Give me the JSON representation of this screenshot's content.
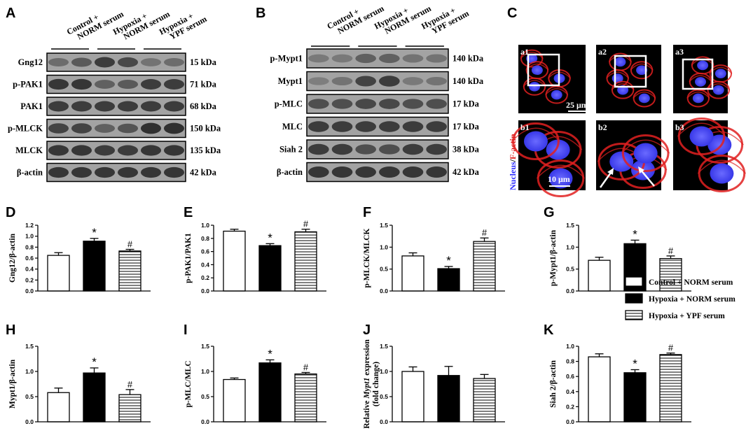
{
  "colors": {
    "blot_bg": "#a3a3a3",
    "band": "#2a2a2a",
    "nucleus": "#3838e8",
    "actin": "#e02020",
    "cell_bg": "#000000"
  },
  "western_a": {
    "letter": "A",
    "group_labels": [
      [
        "Control +",
        "NORM serum"
      ],
      [
        "Hypoxia +",
        "NORM serum"
      ],
      [
        "Hypoxia +",
        "YPF serum"
      ]
    ],
    "rows": [
      {
        "label": "Gng12",
        "kda": "15 kDa",
        "intensity": [
          0.45,
          0.6,
          0.85,
          0.75,
          0.4,
          0.45
        ]
      },
      {
        "label": "p-PAK1",
        "kda": "71 kDa",
        "intensity": [
          0.9,
          0.9,
          0.55,
          0.6,
          0.85,
          0.85
        ]
      },
      {
        "label": "PAK1",
        "kda": "68 kDa",
        "intensity": [
          0.85,
          0.85,
          0.85,
          0.85,
          0.85,
          0.85
        ]
      },
      {
        "label": "p-MLCK",
        "kda": "150 kDa",
        "intensity": [
          0.8,
          0.8,
          0.55,
          0.65,
          0.95,
          0.95
        ]
      },
      {
        "label": "MLCK",
        "kda": "135 kDa",
        "intensity": [
          0.9,
          0.9,
          0.85,
          0.85,
          0.9,
          0.9
        ]
      },
      {
        "label": "β-actin",
        "kda": "42 kDa",
        "intensity": [
          0.9,
          0.9,
          0.9,
          0.9,
          0.9,
          0.9
        ]
      }
    ]
  },
  "western_b": {
    "letter": "B",
    "group_labels": [
      [
        "Control +",
        "NORM serum"
      ],
      [
        "Hypoxia +",
        "NORM serum"
      ],
      [
        "Hypoxia +",
        "YPF serum"
      ]
    ],
    "rows": [
      {
        "label": "p-Mypt1",
        "kda": "140 kDa",
        "intensity": [
          0.35,
          0.35,
          0.55,
          0.55,
          0.4,
          0.4
        ]
      },
      {
        "label": "Mypt1",
        "kda": "140 kDa",
        "intensity": [
          0.3,
          0.4,
          0.8,
          0.85,
          0.35,
          0.4
        ]
      },
      {
        "label": "p-MLC",
        "kda": "17 kDa",
        "intensity": [
          0.7,
          0.7,
          0.75,
          0.75,
          0.7,
          0.7
        ]
      },
      {
        "label": "MLC",
        "kda": "17 kDa",
        "intensity": [
          0.85,
          0.85,
          0.85,
          0.85,
          0.85,
          0.85
        ]
      },
      {
        "label": "Siah 2",
        "kda": "38 kDa",
        "intensity": [
          0.85,
          0.85,
          0.7,
          0.7,
          0.85,
          0.85
        ]
      },
      {
        "label": "β-actin",
        "kda": "42 kDa",
        "intensity": [
          0.9,
          0.9,
          0.9,
          0.9,
          0.9,
          0.9
        ]
      }
    ]
  },
  "microscopy": {
    "letter": "C",
    "top_labels": [
      "a1",
      "a2",
      "a3"
    ],
    "bottom_labels": [
      "b1",
      "b2",
      "b3"
    ],
    "scale_top": "25 μm",
    "scale_bottom": "10 μm",
    "side_label_nucleus": "Nucleus",
    "side_label_sep": "/",
    "side_label_actin": "F-actin"
  },
  "legend": {
    "items": [
      "Control + NORM serum",
      "Hypoxia + NORM serum",
      "Hypoxia + YPF serum"
    ]
  },
  "chart_data": [
    {
      "type": "bar",
      "letter": "D",
      "ylabel": "Gng12/β-actin",
      "ylim": [
        0,
        1.2
      ],
      "ticks": [
        "0.0",
        "0.2",
        "0.4",
        "0.6",
        "0.8",
        "1.0",
        "1.2"
      ],
      "categories": [
        "Control + NORM serum",
        "Hypoxia + NORM serum",
        "Hypoxia + YPF serum"
      ],
      "values": [
        0.65,
        0.91,
        0.73
      ],
      "errors": [
        0.05,
        0.05,
        0.03
      ],
      "marks": [
        "",
        "*",
        "#"
      ]
    },
    {
      "type": "bar",
      "letter": "E",
      "ylabel": "p-PAK1/PAK1",
      "ylim": [
        0,
        1.0
      ],
      "ticks": [
        "0.0",
        "0.2",
        "0.4",
        "0.6",
        "0.8",
        "1.0"
      ],
      "categories": [
        "Control + NORM serum",
        "Hypoxia + NORM serum",
        "Hypoxia + YPF serum"
      ],
      "values": [
        0.91,
        0.69,
        0.9
      ],
      "errors": [
        0.03,
        0.03,
        0.04
      ],
      "marks": [
        "",
        "*",
        "#"
      ]
    },
    {
      "type": "bar",
      "letter": "F",
      "ylabel": "p-MLCK/MLCK",
      "ylim": [
        0,
        1.5
      ],
      "ticks": [
        "0.0",
        "0.5",
        "1.0",
        "1.5"
      ],
      "categories": [
        "Control + NORM serum",
        "Hypoxia + NORM serum",
        "Hypoxia + YPF serum"
      ],
      "values": [
        0.8,
        0.51,
        1.13
      ],
      "errors": [
        0.07,
        0.05,
        0.08
      ],
      "marks": [
        "",
        "*",
        "#"
      ]
    },
    {
      "type": "bar",
      "letter": "G",
      "ylabel": "p-Mypt1/β-actin",
      "ylim": [
        0,
        1.5
      ],
      "ticks": [
        "0.0",
        "0.5",
        "1.0",
        "1.5"
      ],
      "categories": [
        "Control + NORM serum",
        "Hypoxia + NORM serum",
        "Hypoxia + YPF serum"
      ],
      "values": [
        0.7,
        1.08,
        0.74
      ],
      "errors": [
        0.07,
        0.08,
        0.06
      ],
      "marks": [
        "",
        "*",
        "#"
      ]
    },
    {
      "type": "bar",
      "letter": "H",
      "ylabel": "Mypt1/β-actin",
      "ylim": [
        0,
        1.5
      ],
      "ticks": [
        "0.0",
        "0.5",
        "1.0",
        "1.5"
      ],
      "categories": [
        "Control + NORM serum",
        "Hypoxia + NORM serum",
        "Hypoxia + YPF serum"
      ],
      "values": [
        0.58,
        0.97,
        0.54
      ],
      "errors": [
        0.09,
        0.1,
        0.1
      ],
      "marks": [
        "",
        "*",
        "#"
      ]
    },
    {
      "type": "bar",
      "letter": "I",
      "ylabel": "p-MLC/MLC",
      "ylim": [
        0,
        1.5
      ],
      "ticks": [
        "0.0",
        "0.5",
        "1.0",
        "1.5"
      ],
      "categories": [
        "Control + NORM serum",
        "Hypoxia + NORM serum",
        "Hypoxia + YPF serum"
      ],
      "values": [
        0.84,
        1.17,
        0.95
      ],
      "errors": [
        0.03,
        0.06,
        0.03
      ],
      "marks": [
        "",
        "*",
        "#"
      ]
    },
    {
      "type": "bar",
      "letter": "J",
      "ylabel_parts": [
        "Relative ",
        "Mypt1",
        " expression"
      ],
      "ylabel2": "(fold change)",
      "ylim": [
        0,
        1.5
      ],
      "ticks": [
        "0.0",
        "0.5",
        "1.0",
        "1.5"
      ],
      "categories": [
        "Control + NORM serum",
        "Hypoxia + NORM serum",
        "Hypoxia + YPF serum"
      ],
      "values": [
        1.0,
        0.92,
        0.86
      ],
      "errors": [
        0.09,
        0.18,
        0.08
      ],
      "marks": [
        "",
        "",
        ""
      ]
    },
    {
      "type": "bar",
      "letter": "K",
      "ylabel": "Siah 2/β-actin",
      "ylim": [
        0,
        1.0
      ],
      "ticks": [
        "0.0",
        "0.2",
        "0.4",
        "0.6",
        "0.8",
        "1.0"
      ],
      "categories": [
        "Control + NORM serum",
        "Hypoxia + NORM serum",
        "Hypoxia + YPF serum"
      ],
      "values": [
        0.86,
        0.65,
        0.89
      ],
      "errors": [
        0.04,
        0.04,
        0.02
      ],
      "marks": [
        "",
        "*",
        "#"
      ]
    }
  ]
}
